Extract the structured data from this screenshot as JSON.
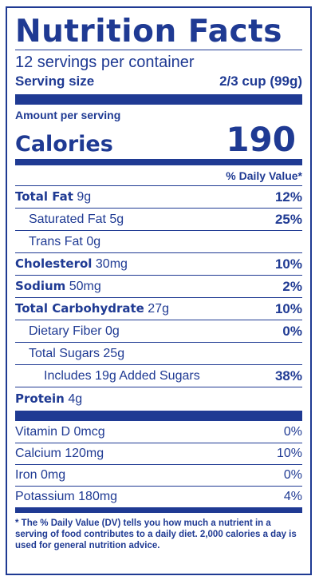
{
  "title": "Nutrition Facts",
  "servings_per_container": "12 servings per container",
  "serving_size": {
    "label": "Serving size",
    "value": "2/3 cup (99g)"
  },
  "amount_per_serving": "Amount per serving",
  "calories": {
    "label": "Calories",
    "value": "190"
  },
  "dv_header": "% Daily Value*",
  "nutrients": [
    {
      "name": "Total Fat",
      "amount": "9g",
      "dv": "12%"
    },
    {
      "name": "Saturated Fat",
      "amount": "5g",
      "dv": "25%"
    },
    {
      "name": "Trans Fat",
      "amount": "0g",
      "dv": ""
    },
    {
      "name": "Cholesterol",
      "amount": "30mg",
      "dv": "10%"
    },
    {
      "name": "Sodium",
      "amount": "50mg",
      "dv": "2%"
    },
    {
      "name": "Total Carbohydrate",
      "amount": "27g",
      "dv": "10%"
    },
    {
      "name": "Dietary Fiber",
      "amount": "0g",
      "dv": "0%"
    },
    {
      "name": "Total Sugars",
      "amount": "25g",
      "dv": ""
    },
    {
      "text": "Includes 19g Added Sugars",
      "dv": "38%"
    },
    {
      "name": "Protein",
      "amount": "4g",
      "dv": ""
    }
  ],
  "vitamins": [
    {
      "text": "Vitamin D 0mcg",
      "dv": "0%"
    },
    {
      "text": "Calcium 120mg",
      "dv": "10%"
    },
    {
      "text": "Iron 0mg",
      "dv": "0%"
    },
    {
      "text": "Potassium 180mg",
      "dv": "4%"
    }
  ],
  "footnote": "* The % Daily Value (DV) tells you how much a nutrient in a serving of food contributes to a daily diet. 2,000 calories a day is used for general nutrition advice.",
  "colors": {
    "ink": "#1f3a93",
    "background": "#ffffff"
  }
}
